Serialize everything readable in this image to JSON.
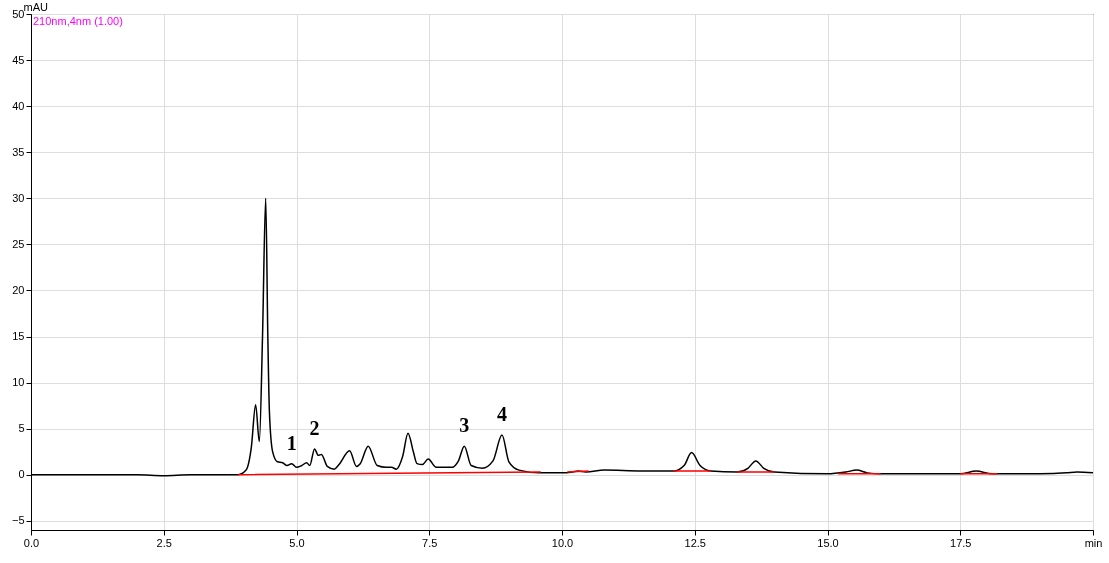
{
  "chart_data": {
    "type": "line",
    "ylabel": "mAU",
    "xlim": [
      0,
      20
    ],
    "xticks": [
      {
        "value": 0,
        "label": "0.0"
      },
      2.5,
      {
        "value": 5,
        "label": "5.0"
      },
      7.5,
      {
        "value": 10,
        "label": "10.0"
      },
      {
        "value": 12.5,
        "label": "12.5"
      },
      {
        "value": 15,
        "label": "15.0"
      },
      {
        "value": 17.5,
        "label": "17.5"
      },
      {
        "value": 20,
        "label": "min"
      }
    ],
    "ylim": [
      -6,
      50
    ],
    "yticks": [
      -5,
      0,
      5,
      10,
      15,
      20,
      25,
      30,
      35,
      40,
      45,
      50
    ],
    "grid": true,
    "marker": "none",
    "line_style": "solid",
    "series": [
      {
        "color": "#000000",
        "x": [
          0,
          1,
          2,
          2.5,
          3,
          3.5,
          3.9,
          4.05,
          4.15,
          4.23,
          4.3,
          4.36,
          4.42,
          4.46,
          4.49,
          4.55,
          4.64,
          4.74,
          4.82,
          4.91,
          5.0,
          5.1,
          5.19,
          5.25,
          5.34,
          5.41,
          5.47,
          5.58,
          5.71,
          5.8,
          6.0,
          6.13,
          6.2,
          6.35,
          6.52,
          6.69,
          6.79,
          6.88,
          7.0,
          7.1,
          7.2,
          7.27,
          7.37,
          7.48,
          7.63,
          7.93,
          8.05,
          8.16,
          8.29,
          8.5,
          8.7,
          8.87,
          9.0,
          9.19,
          9.57,
          10.0,
          10.2,
          10.3,
          10.45,
          10.8,
          11.5,
          12.1,
          12.3,
          12.44,
          12.6,
          12.8,
          13.3,
          13.5,
          13.65,
          13.8,
          14.0,
          15.0,
          15.35,
          15.55,
          15.75,
          16.0,
          17.5,
          17.8,
          18.1,
          19.0,
          19.5,
          19.7,
          20
        ],
        "values": [
          0,
          0,
          0,
          -0.1,
          0,
          0,
          0,
          0.5,
          3,
          7.6,
          3.6,
          15,
          30,
          15,
          6.8,
          2.5,
          1.4,
          1.3,
          1.0,
          1.2,
          0.8,
          1.0,
          1.3,
          1.0,
          2.8,
          2.1,
          2.2,
          0.9,
          0.6,
          1.1,
          2.6,
          0.9,
          1.2,
          3.1,
          1.0,
          0.8,
          0.8,
          0.6,
          2.0,
          4.5,
          2.5,
          1.2,
          1.1,
          1.7,
          0.8,
          0.8,
          1.5,
          3.1,
          1.0,
          0.7,
          1.5,
          4.3,
          1.4,
          0.5,
          0.2,
          0.2,
          0.3,
          0.4,
          0.3,
          0.5,
          0.4,
          0.4,
          1.0,
          2.4,
          1.0,
          0.4,
          0.3,
          0.7,
          1.5,
          0.7,
          0.3,
          0.1,
          0.3,
          0.5,
          0.2,
          0.1,
          0.1,
          0.4,
          0.1,
          0.1,
          0.2,
          0.3,
          0.2
        ]
      },
      {
        "color": "#ff0000",
        "x": [
          3.9,
          9.6,
          9.8,
          10.1,
          10.5,
          11,
          12.1,
          12.8,
          13,
          13.3,
          14,
          14.5,
          15.2,
          16,
          16.5,
          17.5,
          18.2
        ],
        "values": [
          0,
          0.3,
          null,
          0.3,
          0.4,
          null,
          0.4,
          0.4,
          null,
          0.3,
          0.3,
          null,
          0.1,
          0.1,
          null,
          0.1,
          0.1
        ]
      }
    ],
    "annotations": [
      "210nm,4nm  (1.00)",
      {
        "text": "1",
        "x": 4.91,
        "y": 1.2
      },
      {
        "text": "2",
        "x": 5.34,
        "y": 2.8
      },
      {
        "text": "3",
        "x": 8.16,
        "y": 3.1
      },
      {
        "text": "4",
        "x": 8.87,
        "y": 4.3
      }
    ]
  }
}
